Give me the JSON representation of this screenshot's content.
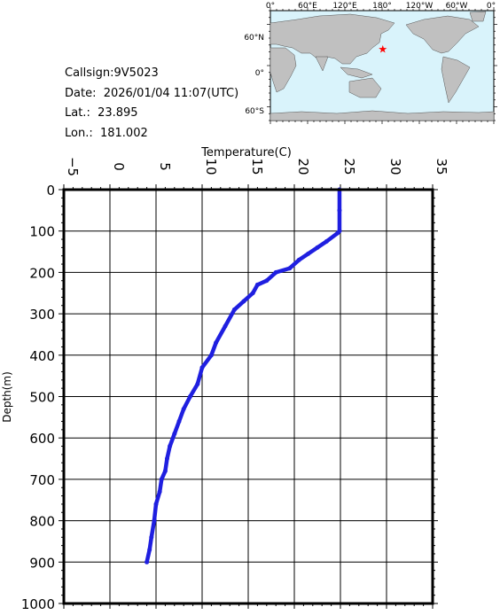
{
  "info": {
    "callsign": "Callsign:9V5023",
    "date": "Date:  2026/01/04 11:07(UTC)",
    "lat": "Lat.:  23.895",
    "lon": "Lon.:  181.002"
  },
  "map": {
    "top_labels": [
      "0°",
      "60°E",
      "120°E",
      "180°",
      "120°W",
      "60°W",
      "0°"
    ],
    "left_labels": [
      "60°N",
      "0°",
      "60°S"
    ],
    "ocean_color": "#d9f3fb",
    "land_color": "#c0c0c0",
    "marker_color": "#ff0000",
    "marker_lon": 181.002,
    "marker_lat": 23.895
  },
  "chart_data": {
    "type": "line",
    "title": "",
    "xlabel": "Temperature(C)",
    "ylabel": "Depth(m)",
    "xlim": [
      -5,
      35
    ],
    "ylim": [
      0,
      1000
    ],
    "y_inverted": true,
    "x_axis_position": "top",
    "grid": true,
    "x_ticks": [
      -5,
      0,
      5,
      10,
      15,
      20,
      25,
      30,
      35
    ],
    "y_ticks": [
      0,
      100,
      200,
      300,
      400,
      500,
      600,
      700,
      800,
      900,
      1000
    ],
    "line_color": "#1f1fe0",
    "series": [
      {
        "x": [
          24.9,
          24.9,
          24.9,
          24.7,
          23.5,
          22.5,
          21.5,
          20.5,
          19.5,
          18.0,
          17.0,
          16.0,
          15.5,
          14.5,
          13.5,
          12.5,
          11.5,
          11.0,
          10.0,
          9.5,
          8.7,
          8.0,
          7.5,
          7.0,
          6.5,
          6.2,
          6.0,
          5.6,
          5.4,
          5.0,
          4.8,
          4.5,
          4.3,
          4.0
        ],
        "y": [
          0,
          50,
          100,
          105,
          125,
          140,
          155,
          170,
          190,
          200,
          220,
          230,
          250,
          270,
          290,
          330,
          370,
          400,
          430,
          470,
          500,
          530,
          560,
          590,
          620,
          650,
          680,
          700,
          730,
          760,
          800,
          840,
          870,
          900
        ]
      }
    ]
  }
}
